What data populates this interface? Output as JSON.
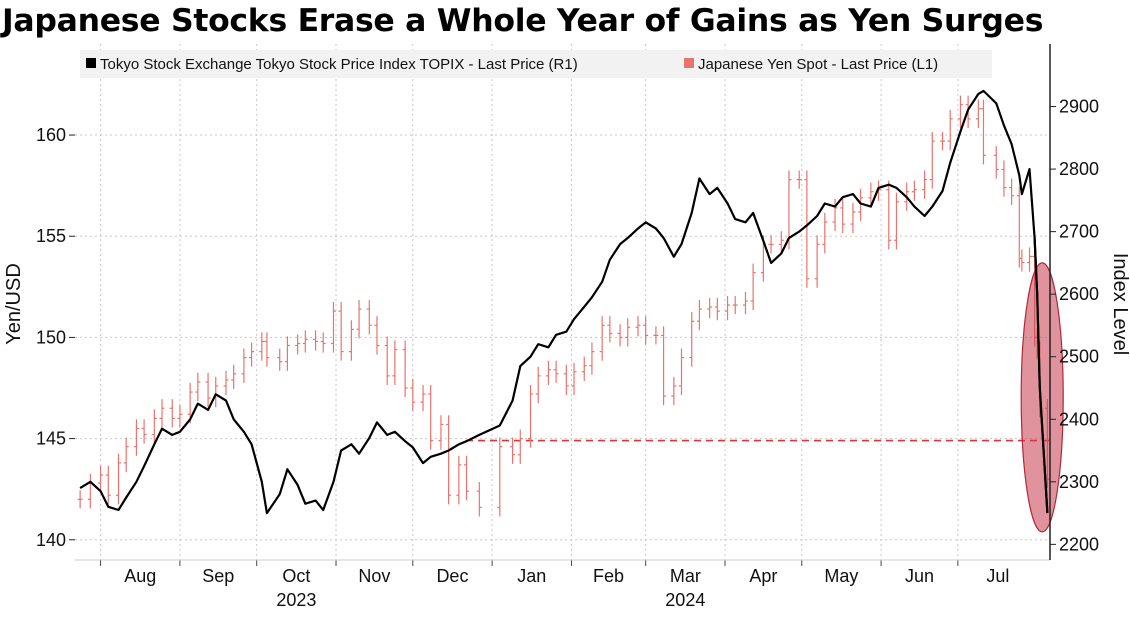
{
  "chart_data": {
    "type": "line",
    "title": "Japanese Stocks Erase a Whole Year of Gains as Yen Surges",
    "legend_position": "top",
    "grid": true,
    "colors": {
      "topix": "#000000",
      "yen": "#e8746f",
      "highlight_fill": "#c73a4b",
      "reference_line": "#e0333c"
    },
    "x_ticks": [
      {
        "label": "Aug",
        "year": "2023",
        "date": "2023-08-01"
      },
      {
        "label": "Sep",
        "year": "",
        "date": "2023-09-01"
      },
      {
        "label": "Oct",
        "year": "2023",
        "date": "2023-10-01"
      },
      {
        "label": "Nov",
        "year": "",
        "date": "2023-11-01"
      },
      {
        "label": "Dec",
        "year": "",
        "date": "2023-12-01"
      },
      {
        "label": "Jan",
        "year": "",
        "date": "2024-01-01"
      },
      {
        "label": "Feb",
        "year": "",
        "date": "2024-02-01"
      },
      {
        "label": "Mar",
        "year": "2024",
        "date": "2024-03-01"
      },
      {
        "label": "Apr",
        "year": "",
        "date": "2024-04-01"
      },
      {
        "label": "May",
        "year": "",
        "date": "2024-05-01"
      },
      {
        "label": "Jun",
        "year": "",
        "date": "2024-06-01"
      },
      {
        "label": "Jul",
        "year": "",
        "date": "2024-07-01"
      }
    ],
    "x_range": [
      "2023-07-22",
      "2024-08-06"
    ],
    "left_axis": {
      "label": "Yen/USD",
      "ticks": [
        140,
        145,
        150,
        155,
        160
      ],
      "range": [
        139,
        164.5
      ]
    },
    "right_axis": {
      "label": "Index Level",
      "ticks": [
        2200,
        2300,
        2400,
        2500,
        2600,
        2700,
        2800,
        2900
      ],
      "range": [
        2175,
        3000
      ]
    },
    "reference_line": {
      "axis": "right",
      "value": 2366
    },
    "highlight_ellipse": {
      "date": "2024-08-01",
      "value_top": 2650,
      "value_bottom": 2220
    },
    "series": [
      {
        "name": "Tokyo Stock Exchange Tokyo Stock Price Index TOPIX - Last Price (R1)",
        "axis": "right",
        "style": "line",
        "points": [
          [
            "2023-07-24",
            2290
          ],
          [
            "2023-07-28",
            2300
          ],
          [
            "2023-08-01",
            2285
          ],
          [
            "2023-08-04",
            2260
          ],
          [
            "2023-08-08",
            2255
          ],
          [
            "2023-08-11",
            2275
          ],
          [
            "2023-08-15",
            2300
          ],
          [
            "2023-08-18",
            2325
          ],
          [
            "2023-08-22",
            2360
          ],
          [
            "2023-08-25",
            2385
          ],
          [
            "2023-08-29",
            2375
          ],
          [
            "2023-09-01",
            2380
          ],
          [
            "2023-09-05",
            2400
          ],
          [
            "2023-09-08",
            2425
          ],
          [
            "2023-09-12",
            2415
          ],
          [
            "2023-09-15",
            2440
          ],
          [
            "2023-09-19",
            2430
          ],
          [
            "2023-09-22",
            2400
          ],
          [
            "2023-09-26",
            2380
          ],
          [
            "2023-09-29",
            2360
          ],
          [
            "2023-10-03",
            2300
          ],
          [
            "2023-10-05",
            2250
          ],
          [
            "2023-10-10",
            2280
          ],
          [
            "2023-10-13",
            2320
          ],
          [
            "2023-10-17",
            2295
          ],
          [
            "2023-10-20",
            2265
          ],
          [
            "2023-10-24",
            2270
          ],
          [
            "2023-10-27",
            2255
          ],
          [
            "2023-10-31",
            2300
          ],
          [
            "2023-11-03",
            2350
          ],
          [
            "2023-11-07",
            2360
          ],
          [
            "2023-11-10",
            2345
          ],
          [
            "2023-11-14",
            2370
          ],
          [
            "2023-11-17",
            2395
          ],
          [
            "2023-11-21",
            2375
          ],
          [
            "2023-11-24",
            2380
          ],
          [
            "2023-11-28",
            2365
          ],
          [
            "2023-12-01",
            2355
          ],
          [
            "2023-12-05",
            2330
          ],
          [
            "2023-12-08",
            2340
          ],
          [
            "2023-12-12",
            2345
          ],
          [
            "2023-12-15",
            2350
          ],
          [
            "2023-12-19",
            2360
          ],
          [
            "2023-12-22",
            2365
          ],
          [
            "2023-12-27",
            2375
          ],
          [
            "2024-01-04",
            2390
          ],
          [
            "2024-01-09",
            2430
          ],
          [
            "2024-01-12",
            2485
          ],
          [
            "2024-01-16",
            2500
          ],
          [
            "2024-01-19",
            2520
          ],
          [
            "2024-01-23",
            2515
          ],
          [
            "2024-01-26",
            2535
          ],
          [
            "2024-01-30",
            2540
          ],
          [
            "2024-02-02",
            2560
          ],
          [
            "2024-02-06",
            2580
          ],
          [
            "2024-02-09",
            2595
          ],
          [
            "2024-02-13",
            2620
          ],
          [
            "2024-02-16",
            2655
          ],
          [
            "2024-02-20",
            2680
          ],
          [
            "2024-02-23",
            2690
          ],
          [
            "2024-02-27",
            2705
          ],
          [
            "2024-03-01",
            2715
          ],
          [
            "2024-03-05",
            2705
          ],
          [
            "2024-03-08",
            2690
          ],
          [
            "2024-03-12",
            2660
          ],
          [
            "2024-03-15",
            2680
          ],
          [
            "2024-03-19",
            2730
          ],
          [
            "2024-03-22",
            2785
          ],
          [
            "2024-03-26",
            2760
          ],
          [
            "2024-03-29",
            2770
          ],
          [
            "2024-04-02",
            2745
          ],
          [
            "2024-04-05",
            2720
          ],
          [
            "2024-04-09",
            2715
          ],
          [
            "2024-04-12",
            2730
          ],
          [
            "2024-04-16",
            2685
          ],
          [
            "2024-04-19",
            2650
          ],
          [
            "2024-04-23",
            2665
          ],
          [
            "2024-04-26",
            2690
          ],
          [
            "2024-04-30",
            2700
          ],
          [
            "2024-05-03",
            2710
          ],
          [
            "2024-05-07",
            2725
          ],
          [
            "2024-05-10",
            2745
          ],
          [
            "2024-05-14",
            2740
          ],
          [
            "2024-05-17",
            2755
          ],
          [
            "2024-05-21",
            2760
          ],
          [
            "2024-05-24",
            2745
          ],
          [
            "2024-05-28",
            2740
          ],
          [
            "2024-05-31",
            2770
          ],
          [
            "2024-06-04",
            2775
          ],
          [
            "2024-06-07",
            2770
          ],
          [
            "2024-06-11",
            2755
          ],
          [
            "2024-06-14",
            2740
          ],
          [
            "2024-06-18",
            2725
          ],
          [
            "2024-06-21",
            2740
          ],
          [
            "2024-06-25",
            2765
          ],
          [
            "2024-06-28",
            2810
          ],
          [
            "2024-07-02",
            2860
          ],
          [
            "2024-07-05",
            2895
          ],
          [
            "2024-07-09",
            2920
          ],
          [
            "2024-07-11",
            2925
          ],
          [
            "2024-07-16",
            2905
          ],
          [
            "2024-07-19",
            2870
          ],
          [
            "2024-07-22",
            2840
          ],
          [
            "2024-07-25",
            2790
          ],
          [
            "2024-07-26",
            2760
          ],
          [
            "2024-07-29",
            2800
          ],
          [
            "2024-07-31",
            2690
          ],
          [
            "2024-08-01",
            2600
          ],
          [
            "2024-08-02",
            2450
          ],
          [
            "2024-08-05",
            2250
          ]
        ]
      },
      {
        "name": "Japanese Yen Spot - Last Price (L1)",
        "axis": "left",
        "style": "hilo",
        "points": [
          [
            "2023-07-24",
            142.0
          ],
          [
            "2023-07-28",
            142.8
          ],
          [
            "2023-08-01",
            143.2
          ],
          [
            "2023-08-04",
            142.2
          ],
          [
            "2023-08-08",
            143.8
          ],
          [
            "2023-08-11",
            144.6
          ],
          [
            "2023-08-15",
            145.5
          ],
          [
            "2023-08-18",
            145.2
          ],
          [
            "2023-08-22",
            146.0
          ],
          [
            "2023-08-25",
            146.5
          ],
          [
            "2023-08-29",
            146.0
          ],
          [
            "2023-09-01",
            146.2
          ],
          [
            "2023-09-05",
            147.3
          ],
          [
            "2023-09-08",
            147.8
          ],
          [
            "2023-09-12",
            147.0
          ],
          [
            "2023-09-15",
            147.6
          ],
          [
            "2023-09-19",
            147.9
          ],
          [
            "2023-09-22",
            148.2
          ],
          [
            "2023-09-26",
            149.0
          ],
          [
            "2023-09-29",
            149.3
          ],
          [
            "2023-10-03",
            149.8
          ],
          [
            "2023-10-05",
            149.0
          ],
          [
            "2023-10-10",
            148.8
          ],
          [
            "2023-10-13",
            149.6
          ],
          [
            "2023-10-17",
            149.7
          ],
          [
            "2023-10-20",
            149.9
          ],
          [
            "2023-10-24",
            149.8
          ],
          [
            "2023-10-27",
            149.7
          ],
          [
            "2023-10-31",
            151.3
          ],
          [
            "2023-11-03",
            149.3
          ],
          [
            "2023-11-07",
            150.4
          ],
          [
            "2023-11-10",
            151.4
          ],
          [
            "2023-11-14",
            150.6
          ],
          [
            "2023-11-17",
            149.6
          ],
          [
            "2023-11-21",
            148.1
          ],
          [
            "2023-11-24",
            149.4
          ],
          [
            "2023-11-28",
            147.5
          ],
          [
            "2023-12-01",
            146.8
          ],
          [
            "2023-12-05",
            147.2
          ],
          [
            "2023-12-08",
            144.9
          ],
          [
            "2023-12-12",
            145.7
          ],
          [
            "2023-12-15",
            142.2
          ],
          [
            "2023-12-19",
            143.7
          ],
          [
            "2023-12-22",
            142.4
          ],
          [
            "2023-12-27",
            141.6
          ],
          [
            "2024-01-04",
            144.6
          ],
          [
            "2024-01-09",
            144.2
          ],
          [
            "2024-01-12",
            145.0
          ],
          [
            "2024-01-16",
            147.2
          ],
          [
            "2024-01-19",
            148.1
          ],
          [
            "2024-01-23",
            148.4
          ],
          [
            "2024-01-26",
            148.2
          ],
          [
            "2024-01-30",
            147.6
          ],
          [
            "2024-02-02",
            148.3
          ],
          [
            "2024-02-06",
            148.6
          ],
          [
            "2024-02-09",
            149.3
          ],
          [
            "2024-02-13",
            150.6
          ],
          [
            "2024-02-16",
            150.2
          ],
          [
            "2024-02-20",
            150.0
          ],
          [
            "2024-02-23",
            150.5
          ],
          [
            "2024-02-27",
            150.6
          ],
          [
            "2024-03-01",
            150.1
          ],
          [
            "2024-03-05",
            150.1
          ],
          [
            "2024-03-08",
            147.1
          ],
          [
            "2024-03-12",
            147.6
          ],
          [
            "2024-03-15",
            149.0
          ],
          [
            "2024-03-19",
            150.8
          ],
          [
            "2024-03-22",
            151.4
          ],
          [
            "2024-03-26",
            151.5
          ],
          [
            "2024-03-29",
            151.3
          ],
          [
            "2024-04-02",
            151.6
          ],
          [
            "2024-04-05",
            151.6
          ],
          [
            "2024-04-09",
            151.8
          ],
          [
            "2024-04-12",
            153.2
          ],
          [
            "2024-04-16",
            154.6
          ],
          [
            "2024-04-19",
            154.6
          ],
          [
            "2024-04-23",
            154.8
          ],
          [
            "2024-04-26",
            157.8
          ],
          [
            "2024-04-30",
            157.8
          ],
          [
            "2024-05-03",
            152.9
          ],
          [
            "2024-05-07",
            154.6
          ],
          [
            "2024-05-10",
            155.7
          ],
          [
            "2024-05-14",
            156.4
          ],
          [
            "2024-05-17",
            155.6
          ],
          [
            "2024-05-21",
            156.2
          ],
          [
            "2024-05-24",
            156.9
          ],
          [
            "2024-05-28",
            157.2
          ],
          [
            "2024-05-31",
            157.3
          ],
          [
            "2024-06-04",
            154.8
          ],
          [
            "2024-06-07",
            156.7
          ],
          [
            "2024-06-11",
            157.2
          ],
          [
            "2024-06-14",
            157.3
          ],
          [
            "2024-06-18",
            157.8
          ],
          [
            "2024-06-21",
            159.7
          ],
          [
            "2024-06-25",
            159.7
          ],
          [
            "2024-06-28",
            160.8
          ],
          [
            "2024-07-02",
            161.5
          ],
          [
            "2024-07-05",
            160.8
          ],
          [
            "2024-07-09",
            161.3
          ],
          [
            "2024-07-11",
            159.0
          ],
          [
            "2024-07-16",
            158.3
          ],
          [
            "2024-07-19",
            157.4
          ],
          [
            "2024-07-22",
            157.0
          ],
          [
            "2024-07-25",
            153.9
          ],
          [
            "2024-07-26",
            153.7
          ],
          [
            "2024-07-29",
            154.0
          ],
          [
            "2024-07-31",
            150.0
          ],
          [
            "2024-08-01",
            149.4
          ],
          [
            "2024-08-02",
            146.5
          ],
          [
            "2024-08-05",
            143.0
          ]
        ]
      }
    ]
  }
}
